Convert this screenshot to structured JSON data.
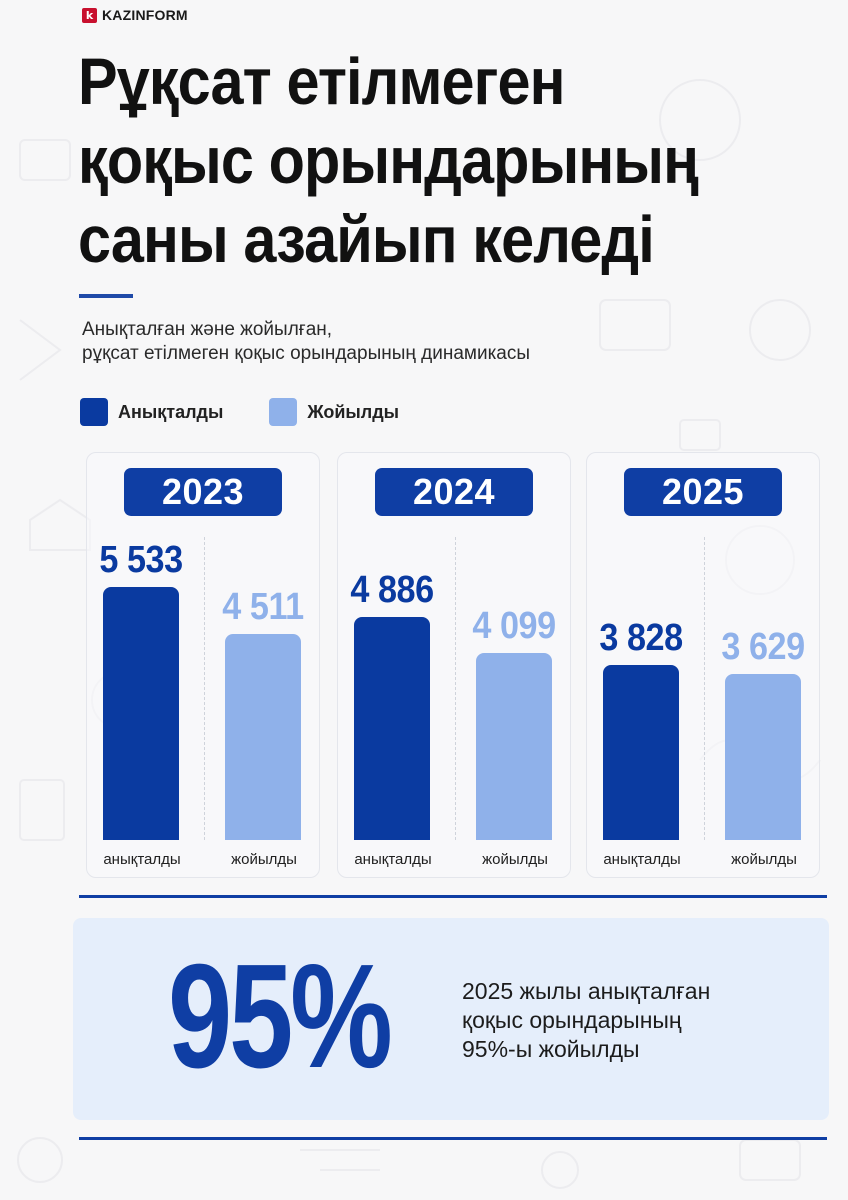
{
  "brand": {
    "logo_letter": "k",
    "name": "KAZINFORM",
    "color": "#c8102e"
  },
  "headline": [
    "Рұқсат етілмеген",
    "қоқыс орындарының",
    "саны азайып келеді"
  ],
  "subtitle": [
    "Анықталған және жойылған,",
    "рұқсат етілмеген қоқыс орындарының динамикасы"
  ],
  "colors": {
    "found": "#0a3aa0",
    "removed": "#8fb1ea",
    "accent": "#0f3ea4",
    "highlight_bg": "#e5eefb"
  },
  "chart_data": {
    "type": "bar",
    "title": "",
    "legend": [
      {
        "name": "Анықталды",
        "color": "#0a3aa0"
      },
      {
        "name": "Жойылды",
        "color": "#8fb1ea"
      }
    ],
    "categories": [
      "2023",
      "2024",
      "2025"
    ],
    "series": [
      {
        "name": "Анықталды",
        "values": [
          5533,
          4886,
          3828
        ],
        "labels": [
          "5 533",
          "4 886",
          "3 828"
        ],
        "axis_label": "анықталды"
      },
      {
        "name": "Жойылды",
        "values": [
          4511,
          4099,
          3629
        ],
        "labels": [
          "4 511",
          "4 099",
          "3 629"
        ],
        "axis_label": "жойылды"
      }
    ],
    "ylim": [
      0,
      5533
    ],
    "grid": false,
    "legend_placement": "top-left"
  },
  "highlight": {
    "value": "95%",
    "text": [
      "2025 жылы анықталған",
      "қоқыс орындарының",
      "95%-ы жойылды"
    ]
  }
}
